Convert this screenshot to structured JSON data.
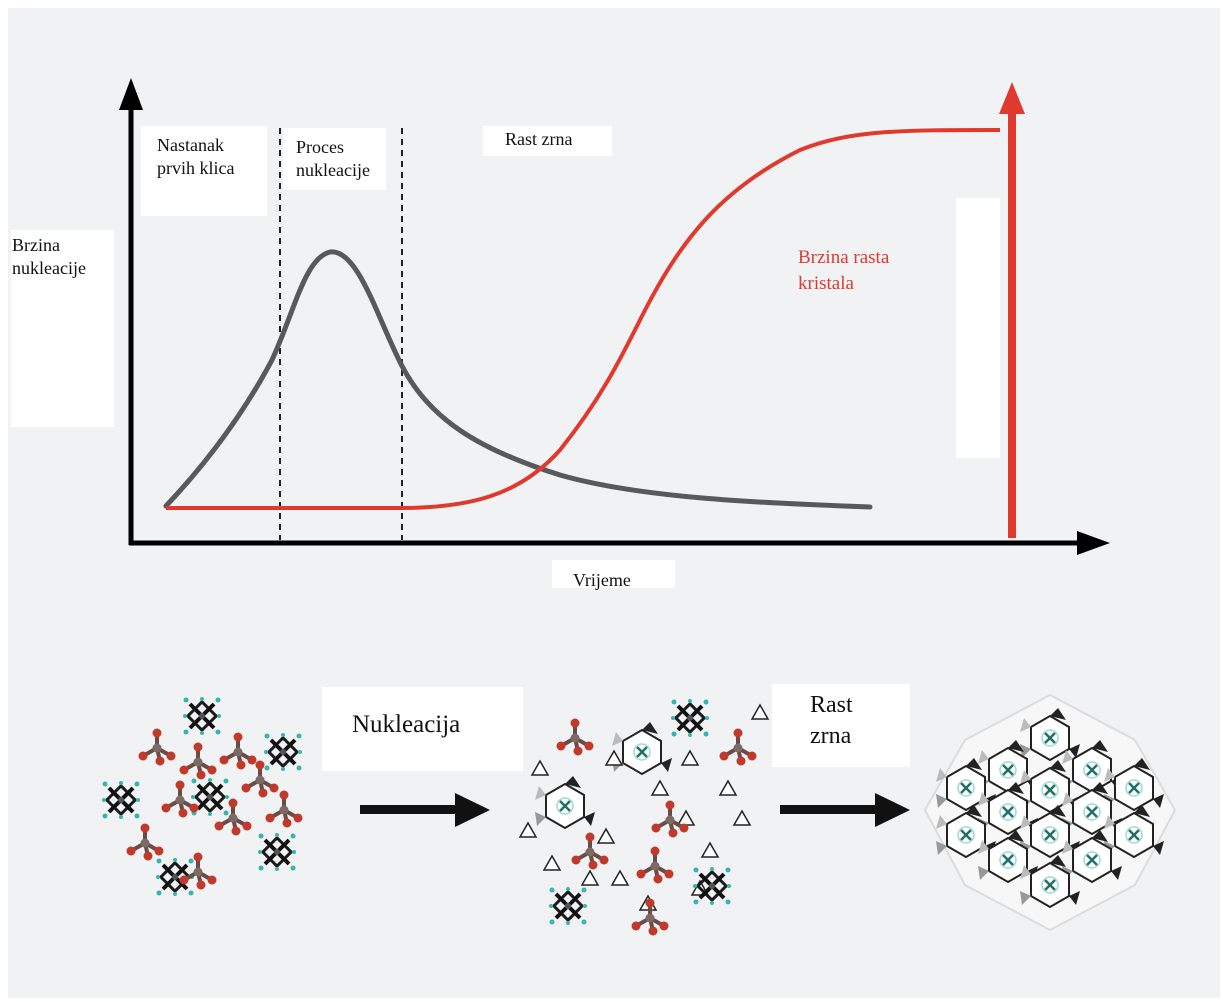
{
  "diagram": {
    "y_axis_label": [
      "Brzina",
      "nukleacije"
    ],
    "x_axis_label": "Vrijeme",
    "phases": {
      "phase1": [
        "Nastanak",
        "prvih klica"
      ],
      "phase2": [
        "Proces",
        "nukleacije"
      ],
      "phase3": "Rast zrna"
    },
    "growth_curve_label": [
      "Brzina rasta",
      "kristala"
    ],
    "process_steps": {
      "step1": "Nukleacija",
      "step2": [
        "Rast",
        "zrna"
      ]
    },
    "colors": {
      "nucleation_curve": "#595959",
      "growth_curve": "#e03a2e",
      "axes": "#000000",
      "panel_background": "#f1f2f4",
      "molecule_red": "#c0392b",
      "molecule_cyan": "#36b5b0"
    },
    "icons": {
      "molecule_cluster": "scattered-molecules-icon",
      "partial_crystal": "partially-crystallized-icon",
      "full_crystal": "crystal-lattice-icon"
    }
  }
}
